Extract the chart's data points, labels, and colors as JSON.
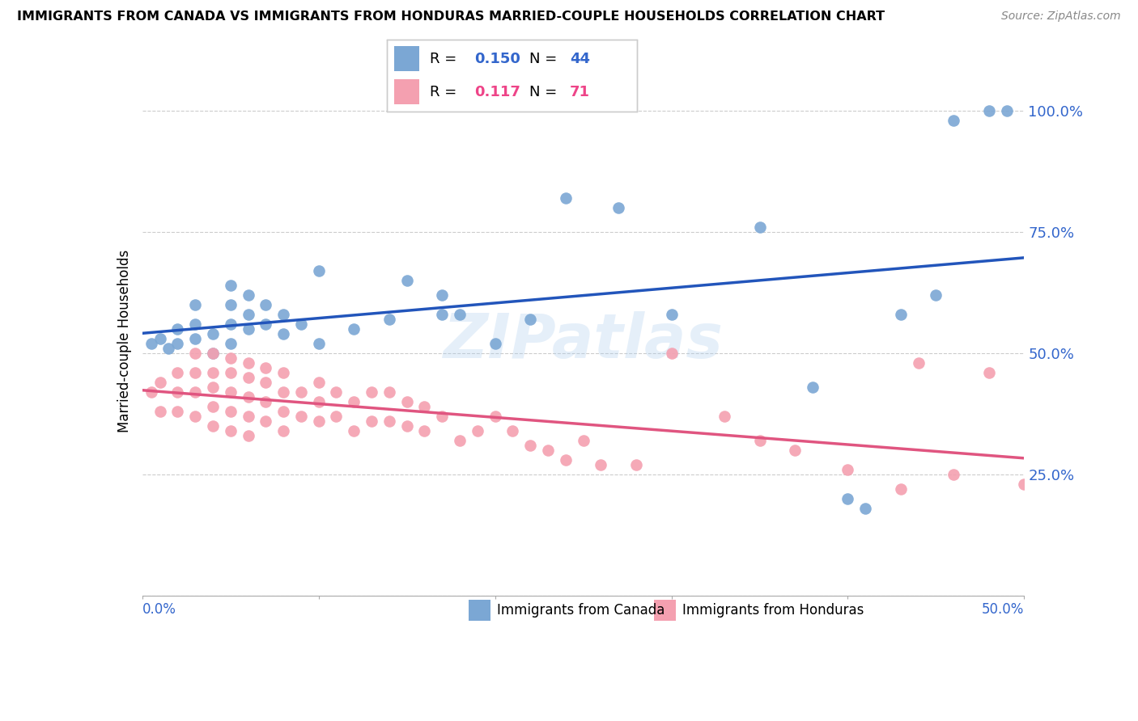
{
  "title": "IMMIGRANTS FROM CANADA VS IMMIGRANTS FROM HONDURAS MARRIED-COUPLE HOUSEHOLDS CORRELATION CHART",
  "source": "Source: ZipAtlas.com",
  "ylabel": "Married-couple Households",
  "canada_R": 0.15,
  "canada_N": 44,
  "honduras_R": 0.117,
  "honduras_N": 71,
  "xlim": [
    0.0,
    0.5
  ],
  "ylim": [
    0.0,
    1.05
  ],
  "blue_color": "#7BA7D4",
  "pink_color": "#F4A0B0",
  "blue_line_color": "#2255BB",
  "pink_line_color": "#E05580",
  "blue_text_color": "#3366CC",
  "pink_text_color": "#EE4488",
  "watermark": "ZIPatlas",
  "canada_x": [
    0.005,
    0.01,
    0.015,
    0.02,
    0.02,
    0.03,
    0.03,
    0.03,
    0.04,
    0.04,
    0.05,
    0.05,
    0.05,
    0.05,
    0.06,
    0.06,
    0.06,
    0.07,
    0.07,
    0.08,
    0.08,
    0.09,
    0.1,
    0.1,
    0.12,
    0.14,
    0.15,
    0.17,
    0.17,
    0.18,
    0.2,
    0.22,
    0.24,
    0.27,
    0.3,
    0.35,
    0.38,
    0.4,
    0.41,
    0.43,
    0.45,
    0.46,
    0.48,
    0.49
  ],
  "canada_y": [
    0.52,
    0.53,
    0.51,
    0.52,
    0.55,
    0.53,
    0.56,
    0.6,
    0.5,
    0.54,
    0.52,
    0.56,
    0.6,
    0.64,
    0.55,
    0.58,
    0.62,
    0.56,
    0.6,
    0.54,
    0.58,
    0.56,
    0.52,
    0.67,
    0.55,
    0.57,
    0.65,
    0.58,
    0.62,
    0.58,
    0.52,
    0.57,
    0.82,
    0.8,
    0.58,
    0.76,
    0.43,
    0.2,
    0.18,
    0.58,
    0.62,
    0.98,
    1.0,
    1.0
  ],
  "honduras_x": [
    0.005,
    0.01,
    0.01,
    0.02,
    0.02,
    0.02,
    0.03,
    0.03,
    0.03,
    0.03,
    0.04,
    0.04,
    0.04,
    0.04,
    0.04,
    0.05,
    0.05,
    0.05,
    0.05,
    0.05,
    0.06,
    0.06,
    0.06,
    0.06,
    0.06,
    0.07,
    0.07,
    0.07,
    0.07,
    0.08,
    0.08,
    0.08,
    0.08,
    0.09,
    0.09,
    0.1,
    0.1,
    0.1,
    0.11,
    0.11,
    0.12,
    0.12,
    0.13,
    0.13,
    0.14,
    0.14,
    0.15,
    0.15,
    0.16,
    0.16,
    0.17,
    0.18,
    0.19,
    0.2,
    0.21,
    0.22,
    0.23,
    0.24,
    0.25,
    0.26,
    0.28,
    0.3,
    0.33,
    0.35,
    0.37,
    0.4,
    0.43,
    0.44,
    0.46,
    0.48,
    0.5
  ],
  "honduras_y": [
    0.42,
    0.38,
    0.44,
    0.38,
    0.42,
    0.46,
    0.37,
    0.42,
    0.46,
    0.5,
    0.35,
    0.39,
    0.43,
    0.46,
    0.5,
    0.34,
    0.38,
    0.42,
    0.46,
    0.49,
    0.33,
    0.37,
    0.41,
    0.45,
    0.48,
    0.36,
    0.4,
    0.44,
    0.47,
    0.34,
    0.38,
    0.42,
    0.46,
    0.37,
    0.42,
    0.36,
    0.4,
    0.44,
    0.37,
    0.42,
    0.34,
    0.4,
    0.36,
    0.42,
    0.36,
    0.42,
    0.35,
    0.4,
    0.34,
    0.39,
    0.37,
    0.32,
    0.34,
    0.37,
    0.34,
    0.31,
    0.3,
    0.28,
    0.32,
    0.27,
    0.27,
    0.5,
    0.37,
    0.32,
    0.3,
    0.26,
    0.22,
    0.48,
    0.25,
    0.46,
    0.23
  ]
}
